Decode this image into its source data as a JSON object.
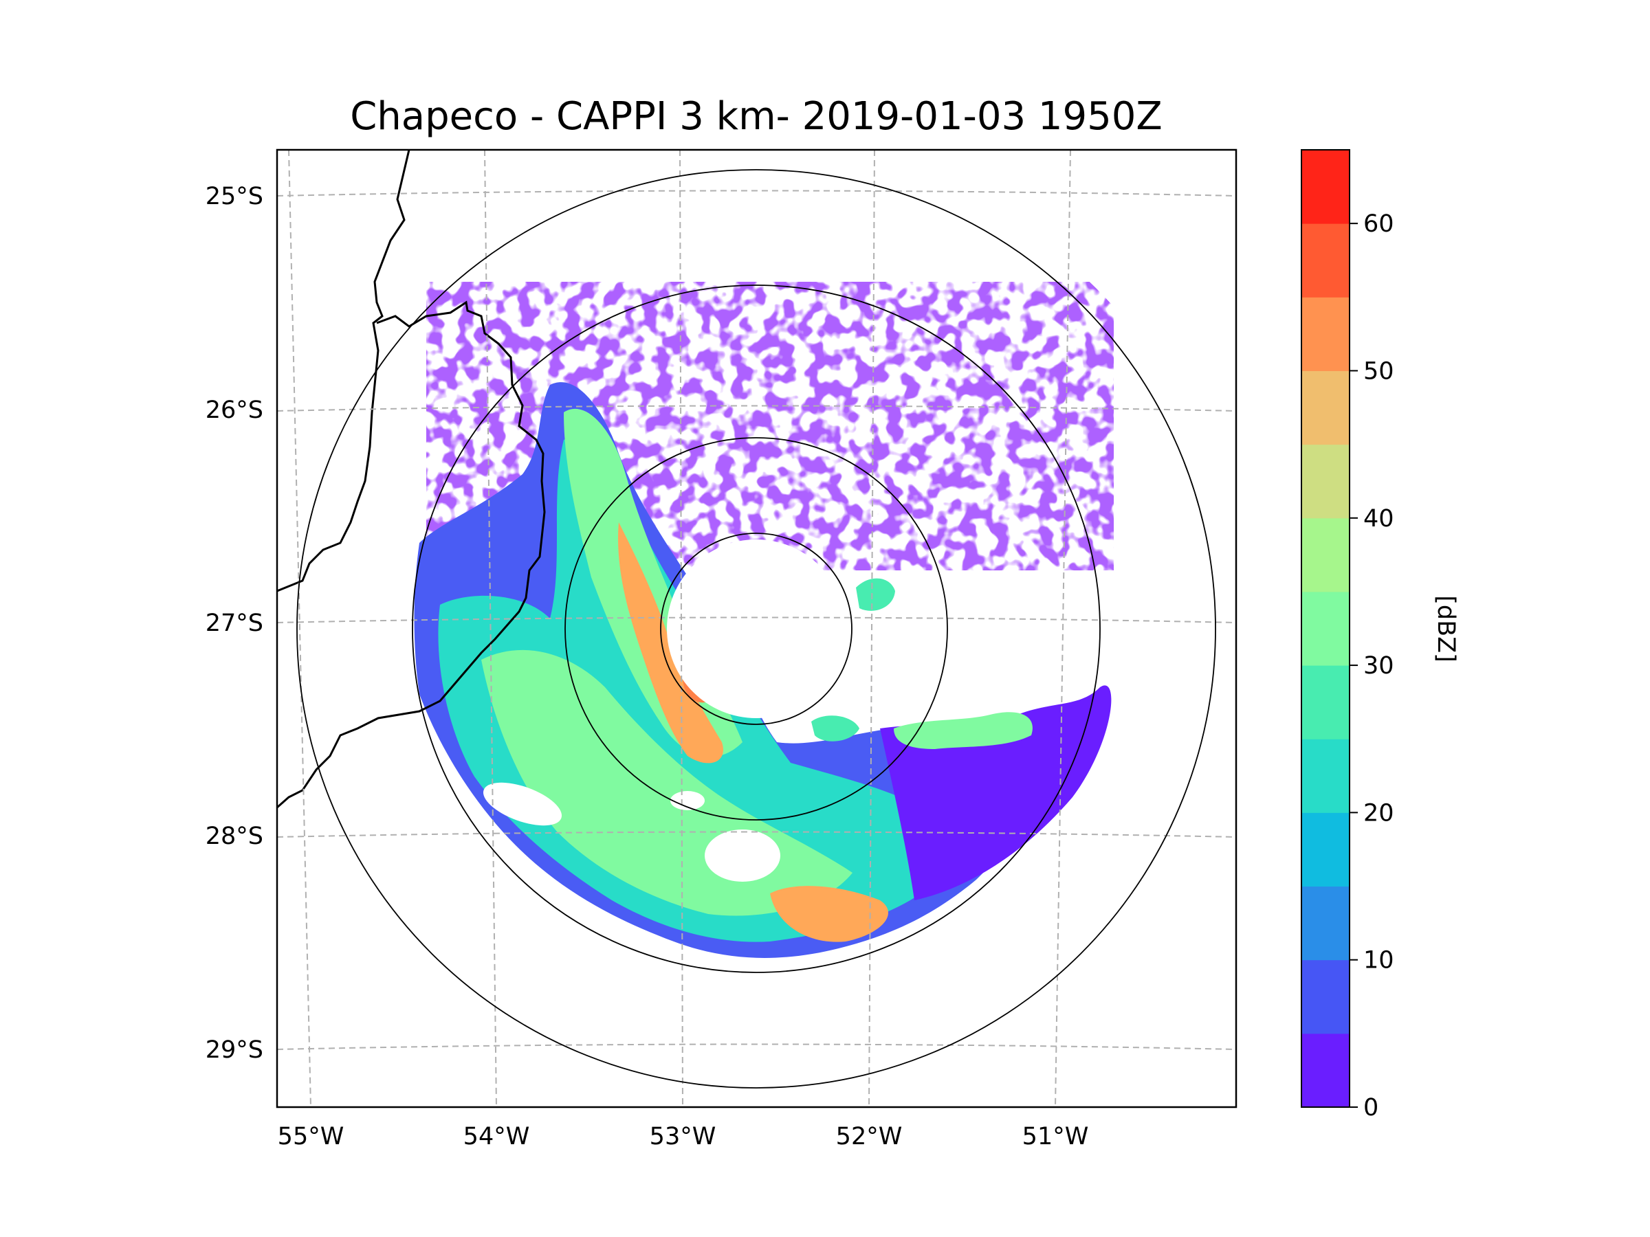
{
  "chart_data": {
    "type": "radar-map",
    "title": "Chapeco - CAPPI 3 km- 2019-01-03 1950Z",
    "lon_ticks": [
      "55°W",
      "54°W",
      "53°W",
      "52°W",
      "51°W"
    ],
    "lat_ticks": [
      "25°S",
      "26°S",
      "27°S",
      "28°S",
      "29°S"
    ],
    "lon_range": [
      -55.2,
      -50.1
    ],
    "lat_range": [
      -29.3,
      -24.8
    ],
    "radar_center": {
      "lon": -52.6,
      "lat": -27.05
    },
    "range_rings": [
      0.45,
      0.9,
      1.62,
      2.16
    ],
    "colorbar": {
      "label": "[dBZ]",
      "ticks": [
        "0",
        "10",
        "20",
        "30",
        "40",
        "50",
        "60"
      ],
      "range": [
        0,
        65
      ],
      "colors": [
        "#6a1eff",
        "#4656f5",
        "#2a8ee8",
        "#10bce0",
        "#28dcc8",
        "#48ecb0",
        "#80faa0",
        "#a6f68c",
        "#cede82",
        "#f0be6e",
        "#ff9250",
        "#ff5a32",
        "#ff2418"
      ]
    },
    "gridlines": true,
    "coastline": "state and country borders (black lines on the west)"
  }
}
